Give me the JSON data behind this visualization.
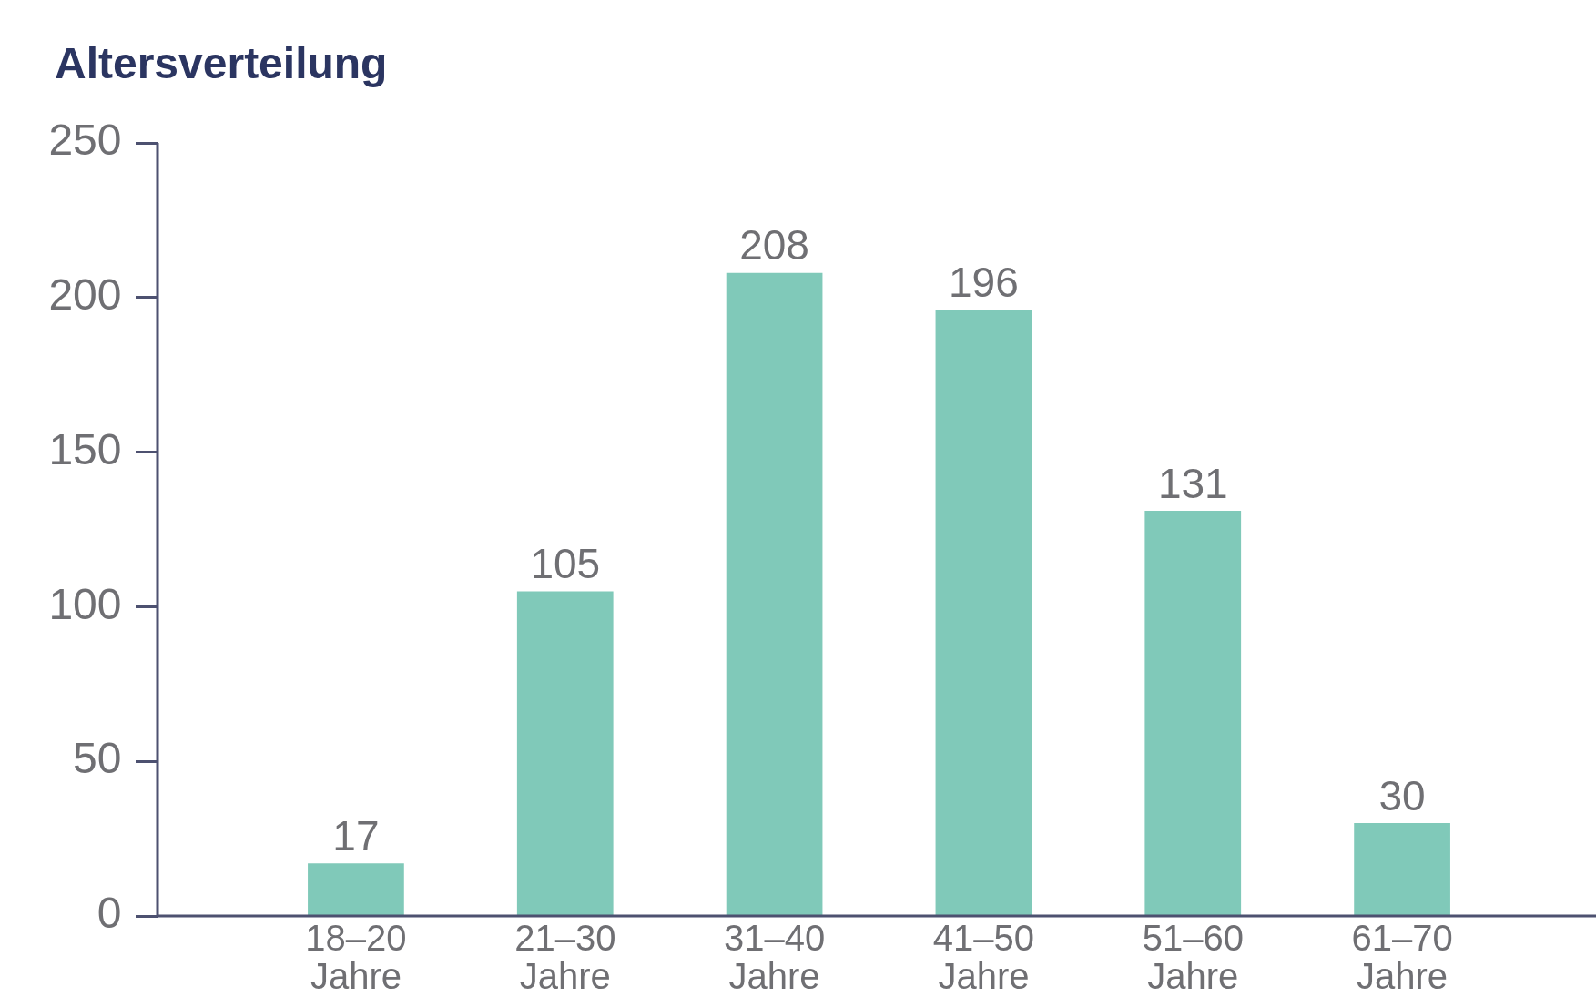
{
  "chart_data": {
    "type": "bar",
    "title": "Altersverteilung",
    "categories": [
      "18–20 Jahre",
      "21–30 Jahre",
      "31–40 Jahre",
      "41–50 Jahre",
      "51–60 Jahre",
      "61–70 Jahre"
    ],
    "values": [
      17,
      105,
      208,
      196,
      131,
      30
    ],
    "color": "#80c9b9",
    "ylim": [
      0,
      250
    ],
    "yticks": [
      0,
      50,
      100,
      150,
      200,
      250
    ],
    "grid": false,
    "legend": false,
    "data_labels": true
  }
}
